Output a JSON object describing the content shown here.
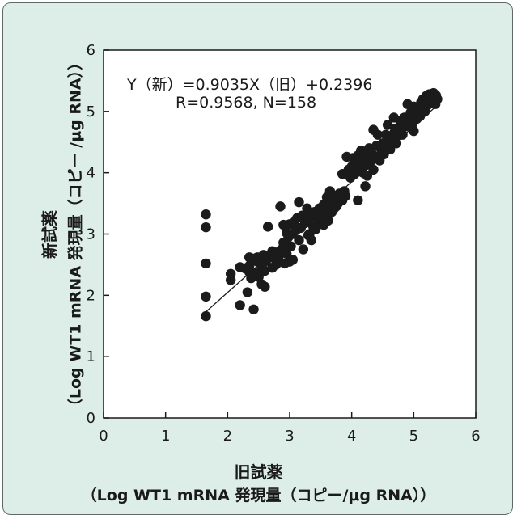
{
  "chart_data": {
    "type": "scatter",
    "title": "",
    "xlabel": "旧試薬",
    "xlabel_unit": "（Log WT1 mRNA 発現量（コピー/μg RNA））",
    "ylabel": "新試薬",
    "ylabel_unit": "（Log WT1 mRNA 発現量（コピー /μg RNA））",
    "xlim": [
      0,
      6
    ],
    "ylim": [
      0,
      6
    ],
    "xticks": [
      "0",
      "1",
      "2",
      "3",
      "4",
      "5",
      "6"
    ],
    "yticks": [
      "0",
      "1",
      "2",
      "3",
      "4",
      "5",
      "6"
    ],
    "grid": false,
    "annotation": {
      "equation": "Y（新）=0.9035X（旧）+0.2396",
      "stats": "R=0.9568, N=158"
    },
    "regression": {
      "slope": 0.9035,
      "intercept": 0.2396,
      "x_range": [
        1.65,
        5.35
      ]
    },
    "points": [
      [
        1.65,
        3.32
      ],
      [
        1.65,
        3.11
      ],
      [
        1.65,
        2.52
      ],
      [
        1.65,
        1.98
      ],
      [
        1.65,
        1.66
      ],
      [
        2.05,
        2.35
      ],
      [
        2.05,
        2.25
      ],
      [
        2.2,
        1.84
      ],
      [
        2.2,
        2.46
      ],
      [
        2.28,
        2.44
      ],
      [
        2.32,
        2.05
      ],
      [
        2.35,
        2.48
      ],
      [
        2.35,
        2.38
      ],
      [
        2.38,
        2.28
      ],
      [
        2.4,
        2.6
      ],
      [
        2.42,
        1.77
      ],
      [
        2.45,
        2.36
      ],
      [
        2.48,
        2.55
      ],
      [
        2.5,
        2.3
      ],
      [
        2.55,
        2.46
      ],
      [
        2.55,
        2.18
      ],
      [
        2.6,
        2.14
      ],
      [
        2.6,
        2.4
      ],
      [
        2.62,
        2.56
      ],
      [
        2.65,
        3.12
      ],
      [
        2.68,
        2.62
      ],
      [
        2.72,
        2.45
      ],
      [
        2.75,
        2.66
      ],
      [
        2.78,
        2.5
      ],
      [
        2.8,
        2.7
      ],
      [
        2.82,
        2.6
      ],
      [
        2.85,
        3.45
      ],
      [
        2.88,
        2.76
      ],
      [
        2.9,
        2.86
      ],
      [
        2.9,
        3.15
      ],
      [
        2.92,
        2.52
      ],
      [
        2.95,
        2.68
      ],
      [
        2.98,
        2.95
      ],
      [
        3.0,
        3.16
      ],
      [
        3.0,
        2.55
      ],
      [
        3.02,
        2.8
      ],
      [
        3.05,
        3.0
      ],
      [
        3.08,
        3.2
      ],
      [
        3.1,
        3.06
      ],
      [
        3.12,
        3.26
      ],
      [
        3.15,
        3.52
      ],
      [
        3.15,
        2.9
      ],
      [
        3.18,
        3.1
      ],
      [
        3.2,
        3.3
      ],
      [
        3.22,
        2.75
      ],
      [
        3.25,
        3.18
      ],
      [
        3.28,
        3.42
      ],
      [
        3.3,
        3.2
      ],
      [
        3.32,
        3.0
      ],
      [
        3.35,
        3.3
      ],
      [
        3.35,
        2.9
      ],
      [
        3.38,
        3.12
      ],
      [
        3.4,
        3.36
      ],
      [
        3.42,
        3.08
      ],
      [
        3.45,
        3.25
      ],
      [
        3.48,
        3.42
      ],
      [
        3.5,
        3.18
      ],
      [
        3.52,
        3.35
      ],
      [
        3.55,
        3.48
      ],
      [
        3.58,
        3.28
      ],
      [
        3.6,
        3.42
      ],
      [
        3.6,
        3.6
      ],
      [
        3.62,
        3.22
      ],
      [
        3.65,
        3.5
      ],
      [
        3.65,
        3.7
      ],
      [
        3.68,
        3.36
      ],
      [
        3.7,
        3.55
      ],
      [
        3.72,
        3.42
      ],
      [
        3.75,
        3.62
      ],
      [
        3.78,
        3.5
      ],
      [
        3.8,
        3.66
      ],
      [
        3.82,
        3.58
      ],
      [
        3.85,
        3.55
      ],
      [
        3.85,
        3.98
      ],
      [
        3.88,
        3.7
      ],
      [
        3.9,
        3.62
      ],
      [
        3.92,
        4.26
      ],
      [
        3.95,
        4.05
      ],
      [
        3.98,
        3.92
      ],
      [
        4.0,
        4.1
      ],
      [
        4.02,
        4.24
      ],
      [
        4.05,
        3.98
      ],
      [
        4.08,
        4.15
      ],
      [
        4.1,
        4.28
      ],
      [
        4.12,
        4.08
      ],
      [
        4.15,
        4.2
      ],
      [
        4.15,
        4.36
      ],
      [
        4.18,
        4.0
      ],
      [
        4.2,
        4.3
      ],
      [
        4.22,
        4.12
      ],
      [
        4.22,
        3.78
      ],
      [
        4.25,
        4.25
      ],
      [
        4.28,
        4.4
      ],
      [
        4.3,
        4.18
      ],
      [
        4.32,
        4.32
      ],
      [
        4.35,
        4.7
      ],
      [
        4.35,
        4.05
      ],
      [
        4.38,
        4.26
      ],
      [
        4.4,
        4.44
      ],
      [
        4.42,
        4.62
      ],
      [
        4.45,
        4.2
      ],
      [
        4.48,
        4.36
      ],
      [
        4.5,
        4.48
      ],
      [
        4.52,
        4.3
      ],
      [
        4.55,
        4.42
      ],
      [
        4.58,
        4.78
      ],
      [
        4.6,
        4.55
      ],
      [
        4.62,
        4.38
      ],
      [
        4.65,
        4.5
      ],
      [
        4.68,
        4.64
      ],
      [
        4.7,
        4.72
      ],
      [
        4.72,
        4.48
      ],
      [
        4.75,
        4.6
      ],
      [
        4.78,
        4.85
      ],
      [
        4.8,
        4.72
      ],
      [
        4.82,
        4.62
      ],
      [
        4.85,
        4.9
      ],
      [
        4.88,
        4.76
      ],
      [
        4.9,
        5.12
      ],
      [
        4.92,
        4.85
      ],
      [
        4.95,
        4.98
      ],
      [
        4.98,
        4.8
      ],
      [
        5.0,
        5.08
      ],
      [
        5.0,
        4.68
      ],
      [
        5.02,
        4.95
      ],
      [
        5.05,
        4.88
      ],
      [
        5.08,
        5.05
      ],
      [
        5.1,
        4.92
      ],
      [
        5.12,
        5.15
      ],
      [
        5.15,
        5.2
      ],
      [
        5.18,
        5.0
      ],
      [
        5.2,
        5.25
      ],
      [
        5.22,
        5.1
      ],
      [
        5.25,
        5.28
      ],
      [
        5.28,
        5.15
      ],
      [
        5.3,
        5.22
      ],
      [
        5.32,
        5.3
      ],
      [
        5.35,
        5.12
      ],
      [
        5.36,
        5.26
      ],
      [
        5.38,
        5.2
      ],
      [
        4.68,
        4.9
      ],
      [
        4.55,
        4.62
      ],
      [
        4.1,
        3.55
      ],
      [
        3.75,
        3.45
      ],
      [
        3.3,
        2.98
      ],
      [
        2.95,
        3.02
      ],
      [
        2.72,
        2.72
      ],
      [
        2.58,
        2.66
      ],
      [
        2.48,
        2.62
      ],
      [
        2.35,
        2.62
      ],
      [
        3.55,
        3.15
      ],
      [
        3.05,
        2.58
      ],
      [
        4.25,
        3.95
      ]
    ]
  },
  "colors": {
    "panel_bg": "#ddeee9",
    "marker": "#1b1b1b",
    "axis": "#1a1a1a",
    "text": "#1a1a1a"
  }
}
